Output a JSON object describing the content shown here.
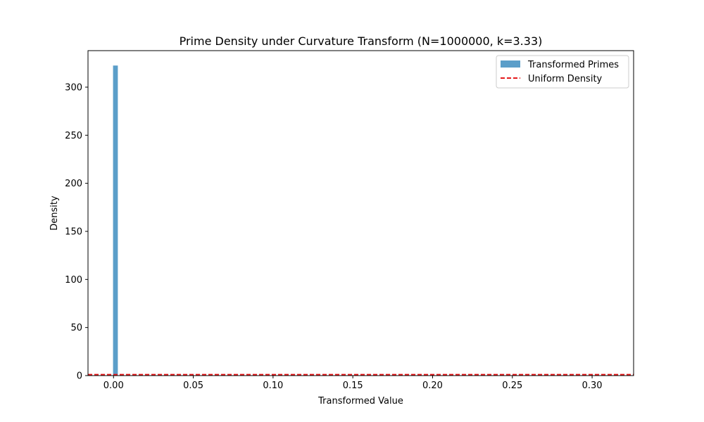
{
  "chart_data": {
    "type": "bar",
    "title": "Prime Density under Curvature Transform (N=1000000, k=3.33)",
    "xlabel": "Transformed Value",
    "ylabel": "Density",
    "xlim": [
      -0.016,
      0.326
    ],
    "ylim": [
      0,
      338
    ],
    "xticks": [
      0.0,
      0.05,
      0.1,
      0.15,
      0.2,
      0.25,
      0.3
    ],
    "xtick_labels": [
      "0.00",
      "0.05",
      "0.10",
      "0.15",
      "0.20",
      "0.25",
      "0.30"
    ],
    "yticks": [
      0,
      50,
      100,
      150,
      200,
      250,
      300
    ],
    "ytick_labels": [
      "0",
      "50",
      "100",
      "150",
      "200",
      "250",
      "300"
    ],
    "series": [
      {
        "name": "Transformed Primes",
        "kind": "histogram",
        "color": "#5b9ec9",
        "bins": [
          {
            "x0": -0.0003,
            "x1": 0.0027,
            "value": 322.5
          }
        ]
      },
      {
        "name": "Uniform Density",
        "kind": "hline",
        "color": "#e41a1c",
        "linestyle": "dashed",
        "value": 1
      }
    ],
    "legend": {
      "placement": "top-right"
    },
    "grid": false
  }
}
